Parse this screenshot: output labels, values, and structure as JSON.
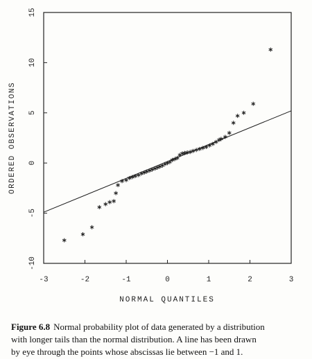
{
  "chart_data": {
    "type": "scatter",
    "xlabel": "NORMAL QUANTILES",
    "ylabel": "ORDERED OBSERVATIONS",
    "xlim": [
      -3,
      3
    ],
    "ylim": [
      -10,
      15
    ],
    "xticks": [
      -3,
      -2,
      -1,
      0,
      1,
      2,
      3
    ],
    "yticks": [
      -10,
      -5,
      0,
      5,
      10,
      15
    ],
    "marker": "*",
    "series": [
      {
        "color": "#1a1a1a",
        "x": [
          -2.5,
          -2.05,
          -1.83,
          -1.65,
          -1.5,
          -1.4,
          -1.3,
          -1.25,
          -1.2,
          -1.1,
          -1.0,
          -0.92,
          -0.85,
          -0.78,
          -0.7,
          -0.63,
          -0.56,
          -0.5,
          -0.43,
          -0.37,
          -0.3,
          -0.24,
          -0.18,
          -0.12,
          -0.06,
          0,
          0.06,
          0.12,
          0.18,
          0.24,
          0.3,
          0.36,
          0.42,
          0.48,
          0.55,
          0.62,
          0.7,
          0.78,
          0.86,
          0.94,
          1.02,
          1.1,
          1.18,
          1.25,
          1.3,
          1.4,
          1.5,
          1.6,
          1.7,
          1.85,
          2.08,
          2.5
        ],
        "y": [
          -7.7,
          -7.1,
          -6.4,
          -4.4,
          -4.1,
          -3.9,
          -3.8,
          -3.0,
          -2.2,
          -1.8,
          -1.7,
          -1.5,
          -1.4,
          -1.3,
          -1.2,
          -1.05,
          -0.95,
          -0.85,
          -0.75,
          -0.65,
          -0.55,
          -0.45,
          -0.35,
          -0.25,
          -0.1,
          0,
          0.1,
          0.3,
          0.4,
          0.5,
          0.8,
          0.95,
          1.0,
          1.05,
          1.1,
          1.2,
          1.3,
          1.4,
          1.5,
          1.6,
          1.75,
          1.9,
          2.1,
          2.3,
          2.4,
          2.6,
          3.0,
          4.0,
          4.7,
          5.0,
          5.9,
          11.3
        ]
      }
    ],
    "lines": [
      {
        "color": "#1a1a1a",
        "x": [
          -3,
          3
        ],
        "y": [
          -4.9,
          5.2
        ]
      }
    ],
    "caption_label": "Figure 6.8",
    "caption_lines": [
      "Normal probability plot of data generated by a distribution",
      "with longer tails than the normal distribution. A line has been drawn",
      "by eye through the points whose abscissas lie between −1 and 1."
    ]
  }
}
